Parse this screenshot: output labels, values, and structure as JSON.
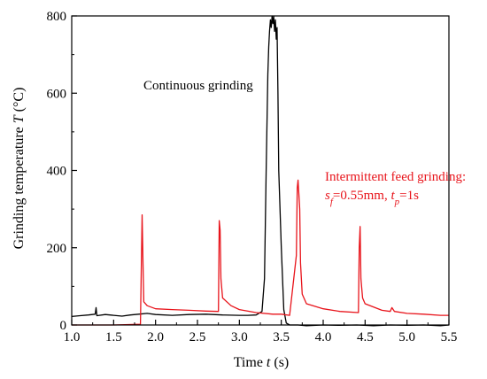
{
  "chart_data": {
    "type": "line",
    "xlabel_prefix": "Time ",
    "xlabel_var": "t",
    "xlabel_suffix": " (s)",
    "ylabel_prefix": "Grinding temperature ",
    "ylabel_var": "T",
    "ylabel_suffix": " (°C)",
    "xlim": [
      1.0,
      5.5
    ],
    "ylim": [
      0,
      800
    ],
    "xticks": [
      "1.0",
      "1.5",
      "2.0",
      "2.5",
      "3.0",
      "3.5",
      "4.0",
      "4.5",
      "5.0",
      "5.5"
    ],
    "yticks": [
      "0",
      "200",
      "400",
      "600",
      "800"
    ],
    "grid": false,
    "colors": {
      "continuous": "#000000",
      "intermittent": "#e8141b"
    },
    "annotations": {
      "continuous": "Continuous grinding",
      "intermittent_line1": "Intermittent feed grinding:",
      "intermittent_sf_var": "s",
      "intermittent_sf_sub": "f",
      "intermittent_sf_val": "=0.55mm, ",
      "intermittent_tp_var": "t",
      "intermittent_tp_sub": "p",
      "intermittent_tp_val": "=1s"
    },
    "series": [
      {
        "key": "continuous",
        "x": [
          1.0,
          1.1,
          1.2,
          1.28,
          1.29,
          1.3,
          1.4,
          1.5,
          1.6,
          1.7,
          1.8,
          1.9,
          2.0,
          2.2,
          2.4,
          2.6,
          2.8,
          3.0,
          3.1,
          3.2,
          3.27,
          3.3,
          3.32,
          3.34,
          3.35,
          3.36,
          3.37,
          3.38,
          3.39,
          3.4,
          3.41,
          3.42,
          3.43,
          3.44,
          3.45,
          3.46,
          3.47,
          3.5,
          3.53,
          3.56,
          3.6,
          3.7,
          3.8,
          4.0,
          4.2,
          4.4,
          4.6,
          4.8,
          5.0,
          5.2,
          5.4,
          5.5
        ],
        "y": [
          22,
          24,
          26,
          28,
          45,
          24,
          27,
          25,
          23,
          26,
          28,
          30,
          27,
          25,
          27,
          28,
          26,
          25,
          25,
          26,
          35,
          120,
          400,
          650,
          720,
          760,
          790,
          770,
          800,
          780,
          800,
          760,
          790,
          740,
          770,
          600,
          400,
          200,
          40,
          5,
          0,
          0,
          -2,
          0,
          -1,
          0,
          -2,
          0,
          -1,
          0,
          -2,
          0
        ]
      },
      {
        "key": "intermittent",
        "x": [
          1.0,
          1.5,
          1.82,
          1.83,
          1.84,
          1.85,
          1.86,
          1.9,
          2.0,
          2.2,
          2.4,
          2.6,
          2.75,
          2.76,
          2.77,
          2.78,
          2.8,
          2.9,
          3.0,
          3.2,
          3.4,
          3.5,
          3.6,
          3.68,
          3.69,
          3.7,
          3.71,
          3.72,
          3.73,
          3.75,
          3.8,
          4.0,
          4.2,
          4.42,
          4.43,
          4.44,
          4.45,
          4.47,
          4.5,
          4.7,
          4.8,
          4.82,
          4.85,
          5.0,
          5.2,
          5.4,
          5.5
        ],
        "y": [
          0,
          0,
          2,
          150,
          285,
          160,
          60,
          50,
          42,
          40,
          38,
          36,
          35,
          270,
          245,
          120,
          70,
          50,
          40,
          32,
          28,
          28,
          25,
          180,
          355,
          375,
          340,
          300,
          160,
          80,
          55,
          42,
          35,
          32,
          200,
          255,
          120,
          70,
          55,
          38,
          35,
          45,
          35,
          30,
          28,
          25,
          25
        ]
      }
    ]
  }
}
